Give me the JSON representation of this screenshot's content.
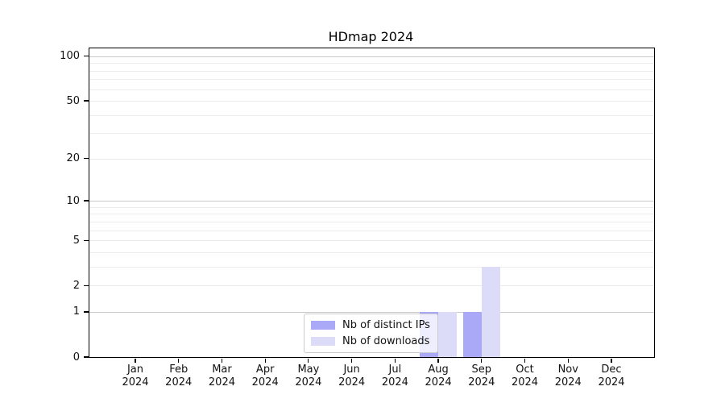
{
  "figure": {
    "title": "HDmap 2024",
    "background": "#ffffff"
  },
  "chart_data": {
    "type": "bar",
    "title": "HDmap 2024",
    "x_categories_months": [
      "Jan",
      "Feb",
      "Mar",
      "Apr",
      "May",
      "Jun",
      "Jul",
      "Aug",
      "Sep",
      "Oct",
      "Nov",
      "Dec"
    ],
    "x_year": "2024",
    "series": [
      {
        "name": "Nb of distinct IPs",
        "color": "#a9a9f7",
        "values": [
          0,
          0,
          0,
          0,
          0,
          0,
          0,
          1,
          1,
          0,
          0,
          0
        ]
      },
      {
        "name": "Nb of downloads",
        "color": "#dcdcf8",
        "values": [
          0,
          0,
          0,
          0,
          0,
          0,
          0,
          1,
          3,
          0,
          0,
          0
        ]
      }
    ],
    "y_axis": {
      "scale": "log10(1+v)",
      "tick_labels": [
        0,
        1,
        2,
        5,
        10,
        20,
        50,
        100
      ],
      "decade_gridlines": [
        1,
        10,
        100
      ],
      "labeled_gridlines": [
        2,
        5,
        20,
        50
      ],
      "minor_gridlines": [
        3,
        4,
        6,
        7,
        8,
        9,
        30,
        40,
        60,
        70,
        80,
        90
      ],
      "max": 113
    },
    "legend": {
      "position": "lower center"
    },
    "grid": true,
    "colors": {
      "grid_minor": "#ececec",
      "grid_decade": "#c8c8c8",
      "spine": "#000000",
      "text": "#111111",
      "background": "#ffffff"
    }
  }
}
